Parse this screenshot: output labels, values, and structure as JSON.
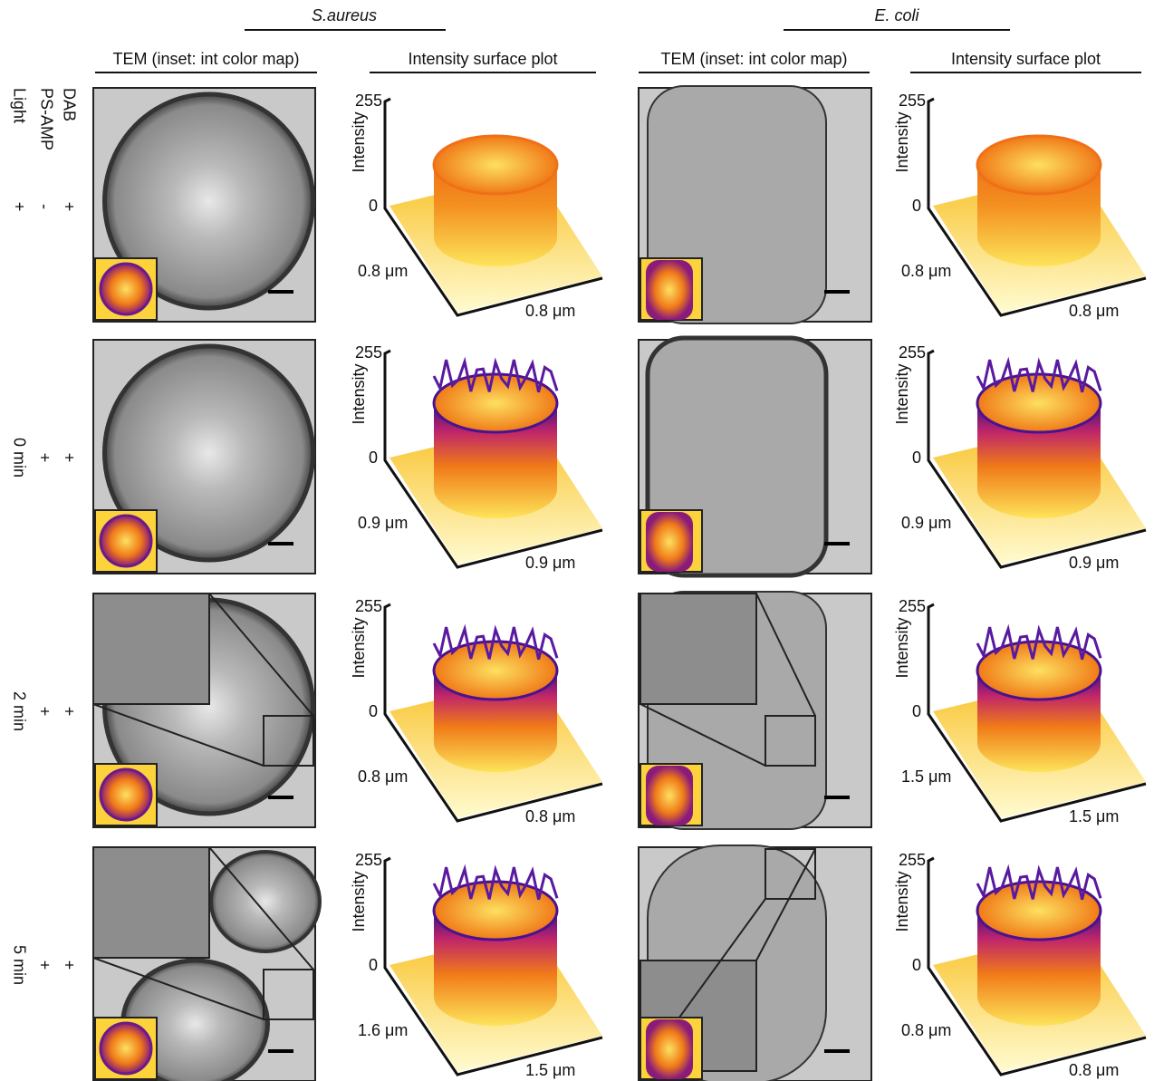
{
  "header": {
    "groups": [
      {
        "title": "S.aureus"
      },
      {
        "title": "E. coli"
      }
    ],
    "columns": [
      "TEM (inset: int color map)",
      "Intensity surface plot",
      "TEM (inset: int color map)",
      "Intensity surface plot"
    ]
  },
  "conditions": [
    "DAB",
    "PS-AMP",
    "Light"
  ],
  "surface_axis": {
    "max": 255,
    "min": 0,
    "label": "Intensity"
  },
  "rows": [
    {
      "dab": "+",
      "ps_amp": "-",
      "light": "+",
      "panels": [
        {
          "depth": "0.8 μm",
          "width": "0.8 μm"
        },
        {
          "depth": "0.8 μm",
          "width": "0.8 μm"
        }
      ]
    },
    {
      "dab": "+",
      "ps_amp": "+",
      "light": "0 min",
      "panels": [
        {
          "depth": "0.9 μm",
          "width": "0.9 μm"
        },
        {
          "depth": "0.9 μm",
          "width": "0.9 μm"
        }
      ]
    },
    {
      "dab": "+",
      "ps_amp": "+",
      "light": "2 min",
      "panels": [
        {
          "depth": "0.8 μm",
          "width": "0.8 μm"
        },
        {
          "depth": "1.5 μm",
          "width": "1.5 μm"
        }
      ]
    },
    {
      "dab": "+",
      "ps_amp": "+",
      "light": "5 min",
      "panels": [
        {
          "depth": "1.6 μm",
          "width": "1.5 μm"
        },
        {
          "depth": "0.8 μm",
          "width": "0.8 μm"
        }
      ]
    }
  ]
}
